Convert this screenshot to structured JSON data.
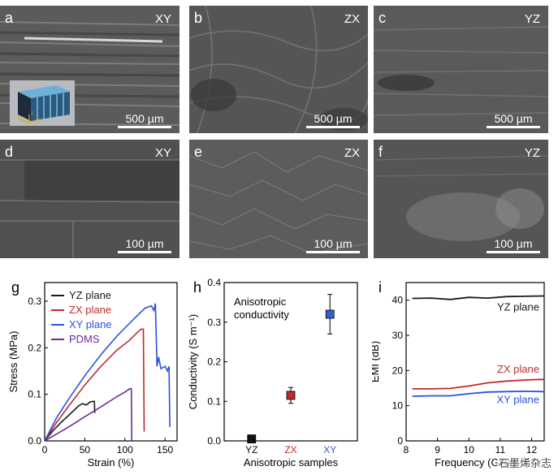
{
  "sem_panels": [
    {
      "label": "a",
      "plane": "XY",
      "scale": "500 µm"
    },
    {
      "label": "b",
      "plane": "ZX",
      "scale": "500 µm"
    },
    {
      "label": "c",
      "plane": "YZ",
      "scale": "500 µm"
    },
    {
      "label": "d",
      "plane": "XY",
      "scale": "100 µm"
    },
    {
      "label": "e",
      "plane": "ZX",
      "scale": "100 µm"
    },
    {
      "label": "f",
      "plane": "YZ",
      "scale": "100 µm"
    }
  ],
  "inset": {
    "axis_x": "x",
    "axis_y": "y",
    "axis_z": "z"
  },
  "chart_data": [
    {
      "panel": "g",
      "type": "line",
      "xlabel": "Strain (%)",
      "ylabel": "Stress (MPa)",
      "xlim": [
        0,
        165
      ],
      "ylim": [
        0,
        0.34
      ],
      "xticks": [
        "0",
        "50",
        "100",
        "150"
      ],
      "yticks": [
        "0.0",
        "0.1",
        "0.2",
        "0.3"
      ],
      "legend": [
        "YZ plane",
        "ZX plane",
        "XY plane",
        "PDMS"
      ],
      "series": [
        {
          "name": "YZ plane",
          "color": "#1a1a1a",
          "x": [
            0,
            10,
            20,
            30,
            38,
            42,
            47,
            52,
            56,
            60,
            62,
            62.5
          ],
          "y": [
            0,
            0.021,
            0.039,
            0.055,
            0.068,
            0.075,
            0.08,
            0.077,
            0.083,
            0.085,
            0.085,
            0.06
          ]
        },
        {
          "name": "ZX plane",
          "color": "#c02a2a",
          "x": [
            0,
            15,
            30,
            50,
            70,
            90,
            105,
            115,
            120,
            123,
            124
          ],
          "y": [
            0,
            0.04,
            0.075,
            0.12,
            0.16,
            0.195,
            0.215,
            0.232,
            0.24,
            0.24,
            0.02
          ]
        },
        {
          "name": "XY plane",
          "color": "#2b50e0",
          "x": [
            0,
            15,
            30,
            50,
            70,
            90,
            110,
            125,
            133,
            136,
            138,
            140,
            142,
            145,
            150,
            153,
            155,
            156
          ],
          "y": [
            0,
            0.05,
            0.09,
            0.14,
            0.185,
            0.225,
            0.26,
            0.285,
            0.29,
            0.28,
            0.295,
            0.16,
            0.18,
            0.155,
            0.16,
            0.15,
            0.16,
            0.03
          ]
        },
        {
          "name": "PDMS",
          "color": "#6a2aa0",
          "x": [
            0,
            15,
            30,
            50,
            70,
            90,
            100,
            106,
            108,
            108.5
          ],
          "y": [
            0,
            0.015,
            0.03,
            0.052,
            0.073,
            0.095,
            0.105,
            0.112,
            0.112,
            0.0
          ]
        }
      ]
    },
    {
      "panel": "h",
      "type": "scatter",
      "title": "Anisotropic conductivity",
      "xlabel": "Anisotropic samples",
      "ylabel": "Conductivity (S m⁻¹)",
      "ylim": [
        0,
        0.4
      ],
      "yticks": [
        "0.0",
        "0.1",
        "0.2",
        "0.3",
        "0.4"
      ],
      "categories": [
        "YZ",
        "ZX",
        "XY"
      ],
      "category_colors": [
        "#111111",
        "#c02a2a",
        "#3060d0"
      ],
      "values": [
        0.005,
        0.115,
        0.32
      ],
      "errors": [
        0.003,
        0.02,
        0.05
      ]
    },
    {
      "panel": "i",
      "type": "line",
      "xlabel": "Frequency (GHz)",
      "ylabel": "EMI (dB)",
      "xlim": [
        8,
        12.4
      ],
      "ylim": [
        0,
        45
      ],
      "xticks": [
        "8",
        "9",
        "10",
        "11",
        "12"
      ],
      "yticks": [
        "0",
        "10",
        "20",
        "30",
        "40"
      ],
      "series": [
        {
          "name": "YZ plane",
          "color": "#1a1a1a",
          "x": [
            8.2,
            8.8,
            9.4,
            10.0,
            10.6,
            11.2,
            11.8,
            12.4
          ],
          "y": [
            40.5,
            40.6,
            40.2,
            40.8,
            40.6,
            41.0,
            41.1,
            41.2
          ]
        },
        {
          "name": "ZX plane",
          "color": "#c02a2a",
          "x": [
            8.2,
            8.8,
            9.4,
            10.0,
            10.6,
            11.2,
            11.8,
            12.4
          ],
          "y": [
            14.8,
            14.8,
            14.9,
            15.6,
            16.5,
            17.0,
            17.3,
            17.5
          ]
        },
        {
          "name": "XY plane",
          "color": "#2b50e0",
          "x": [
            8.2,
            8.8,
            9.4,
            10.0,
            10.6,
            11.2,
            11.8,
            12.4
          ],
          "y": [
            12.7,
            12.8,
            12.8,
            13.4,
            13.9,
            14.0,
            14.1,
            14.0
          ]
        }
      ]
    }
  ],
  "watermark": "石墨烯杂志"
}
